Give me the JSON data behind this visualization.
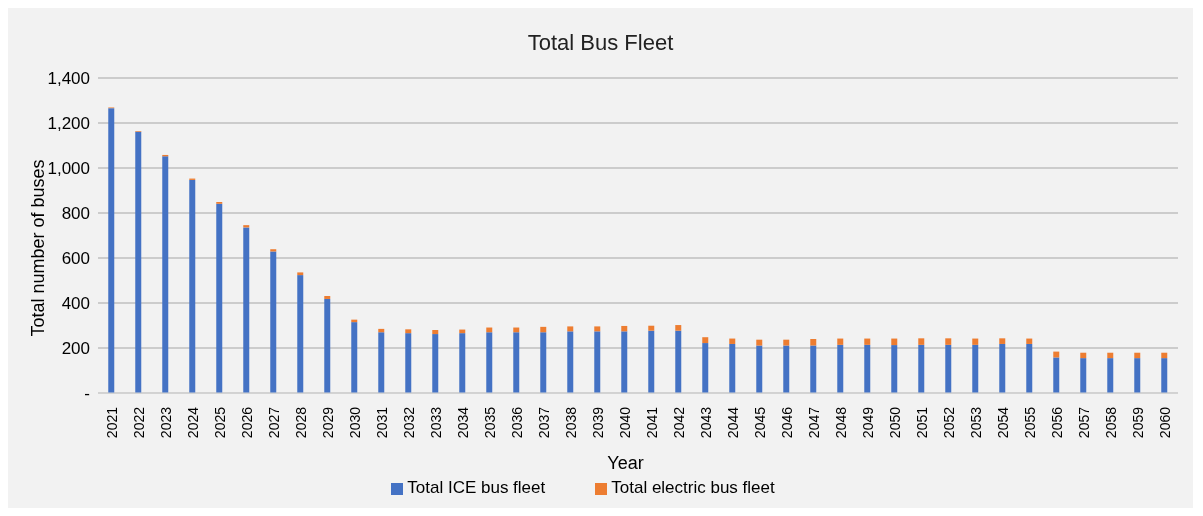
{
  "chart_data": {
    "type": "bar",
    "title": "Total Bus Fleet",
    "xlabel": "Year",
    "ylabel": "Total number of buses",
    "categories": [
      "2021",
      "2022",
      "2023",
      "2024",
      "2025",
      "2026",
      "2027",
      "2028",
      "2029",
      "2030",
      "2031",
      "2032",
      "2033",
      "2034",
      "2035",
      "2036",
      "2037",
      "2038",
      "2039",
      "2040",
      "2041",
      "2042",
      "2043",
      "2044",
      "2045",
      "2046",
      "2047",
      "2048",
      "2049",
      "2050",
      "2051",
      "2052",
      "2053",
      "2054",
      "2055",
      "2056",
      "2057",
      "2058",
      "2059",
      "2060"
    ],
    "series": [
      {
        "name": "Total ICE bus fleet",
        "color": "#4472c4",
        "values": [
          1266,
          1161,
          1052,
          947,
          841,
          736,
          629,
          524,
          418,
          315,
          270,
          266,
          262,
          266,
          270,
          270,
          270,
          274,
          274,
          274,
          277,
          277,
          222,
          218,
          211,
          211,
          211,
          214,
          214,
          213,
          214,
          214,
          214,
          218,
          218,
          158,
          155,
          155,
          155,
          155
        ]
      },
      {
        "name": "Total electric bus fleet",
        "color": "#ed7d31",
        "values": [
          3,
          3,
          6,
          6,
          8,
          10,
          10,
          12,
          13,
          11,
          15,
          17,
          18,
          16,
          21,
          21,
          24,
          22,
          22,
          24,
          22,
          25,
          26,
          24,
          26,
          26,
          29,
          28,
          28,
          29,
          29,
          29,
          28,
          25,
          24,
          26,
          24,
          24,
          24,
          24
        ]
      }
    ],
    "stacked": true,
    "ylim": [
      0,
      1400
    ],
    "yticks": [
      {
        "value": 0,
        "label": "-"
      },
      {
        "value": 200,
        "label": "200"
      },
      {
        "value": 400,
        "label": "400"
      },
      {
        "value": 600,
        "label": "600"
      },
      {
        "value": 800,
        "label": "800"
      },
      {
        "value": 1000,
        "label": "1,000"
      },
      {
        "value": 1200,
        "label": "1,200"
      },
      {
        "value": 1400,
        "label": "1,400"
      }
    ],
    "grid": "y",
    "legend": "bottom"
  }
}
